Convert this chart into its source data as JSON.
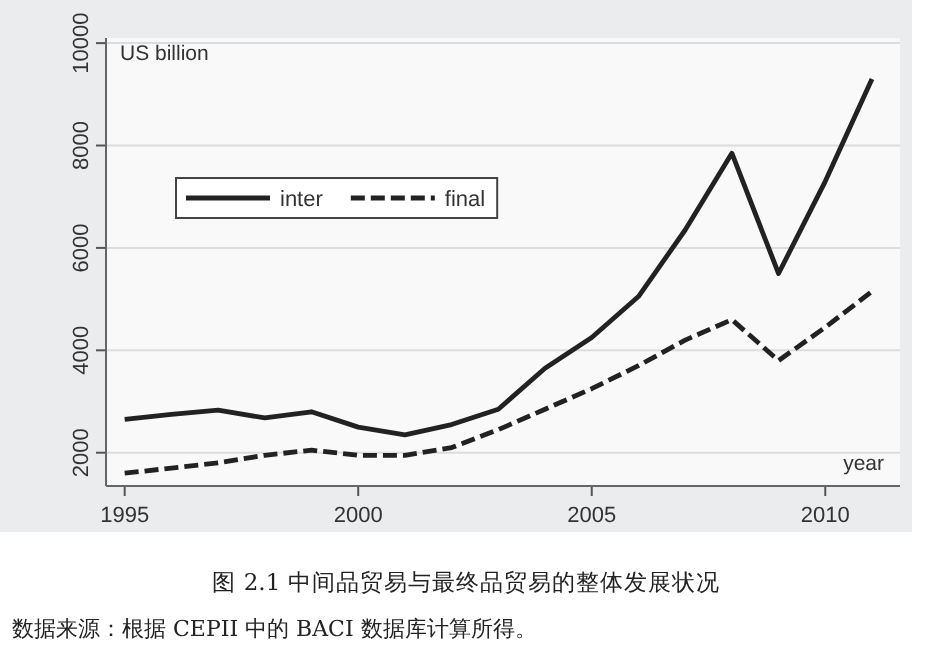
{
  "chart_data": {
    "type": "line",
    "title": "图 2.1 中间品贸易与最终品贸易的整体发展状况",
    "ylabel": "US billion",
    "xlabel": "year",
    "annotations": [
      "数据来源：根据 CEPII 中的 BACI 数据库计算所得。"
    ],
    "x": [
      1995,
      1996,
      1997,
      1998,
      1999,
      2000,
      2001,
      2002,
      2003,
      2004,
      2005,
      2006,
      2007,
      2008,
      2009,
      2010,
      2011
    ],
    "series": [
      {
        "name": "inter",
        "color": "#222222",
        "line_style": "solid",
        "values": [
          2650,
          2750,
          2830,
          2680,
          2800,
          2500,
          2350,
          2550,
          2850,
          3650,
          4250,
          5050,
          6350,
          7850,
          5500,
          7300,
          9300
        ]
      },
      {
        "name": "final",
        "color": "#222222",
        "line_style": "dashed",
        "values": [
          1600,
          1700,
          1800,
          1950,
          2050,
          1950,
          1950,
          2100,
          2450,
          2850,
          3250,
          3700,
          4200,
          4600,
          3800,
          4450,
          5150
        ]
      }
    ],
    "xlim": [
      1994.6,
      2011.6
    ],
    "ylim": [
      1350,
      10100
    ],
    "xticks": [
      1995,
      2000,
      2005,
      2010
    ],
    "yticks": [
      2000,
      4000,
      6000,
      8000,
      10000
    ],
    "grid": "y",
    "legend": "top left",
    "marker": "none"
  }
}
